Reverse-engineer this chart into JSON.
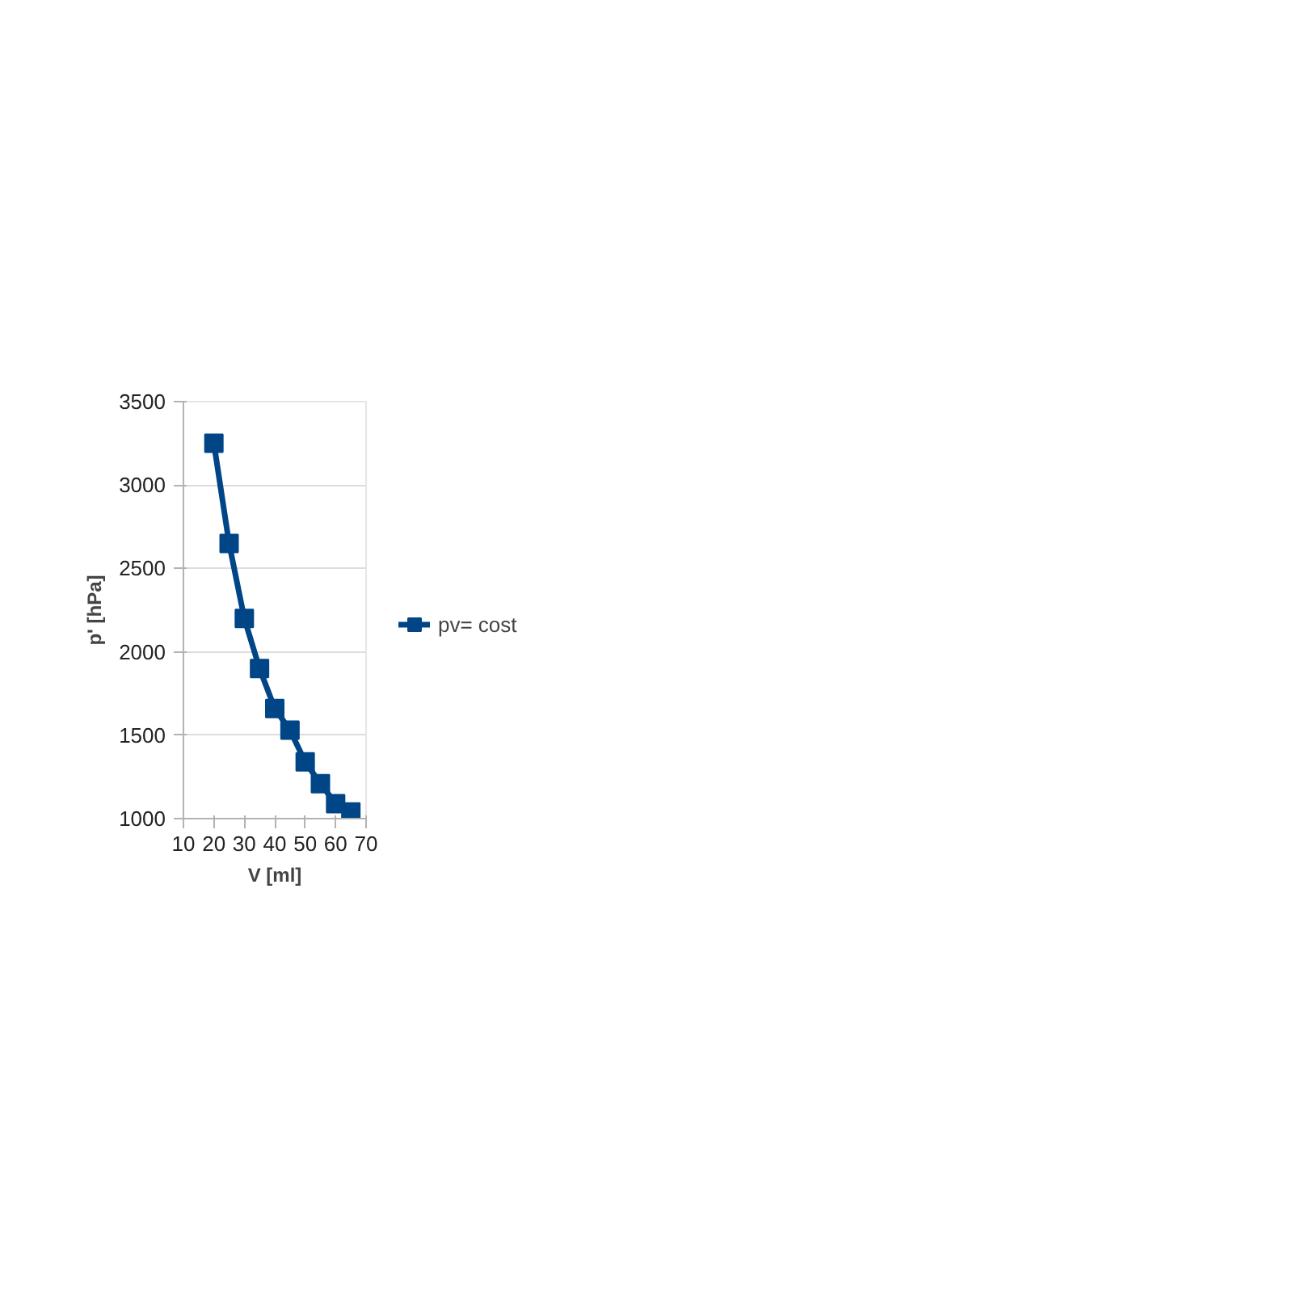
{
  "chart_data": {
    "type": "line",
    "xlabel": "V [ml]",
    "ylabel": "p' [hPa]",
    "x": [
      20,
      25,
      30,
      35,
      40,
      45,
      50,
      55,
      60,
      65
    ],
    "series": [
      {
        "name": "pv= cost",
        "color": "#004586",
        "values": [
          3250,
          2650,
          2200,
          1900,
          1660,
          1530,
          1340,
          1210,
          1090,
          1040
        ]
      }
    ],
    "xlim": [
      10,
      70
    ],
    "xticks": [
      10,
      20,
      30,
      40,
      50,
      60,
      70
    ],
    "ylim": [
      1000,
      3500
    ],
    "yticks": [
      1000,
      1500,
      2000,
      2500,
      3000,
      3500
    ],
    "grid": "y",
    "legend": "right",
    "marker": "square",
    "line_style": "solid"
  }
}
